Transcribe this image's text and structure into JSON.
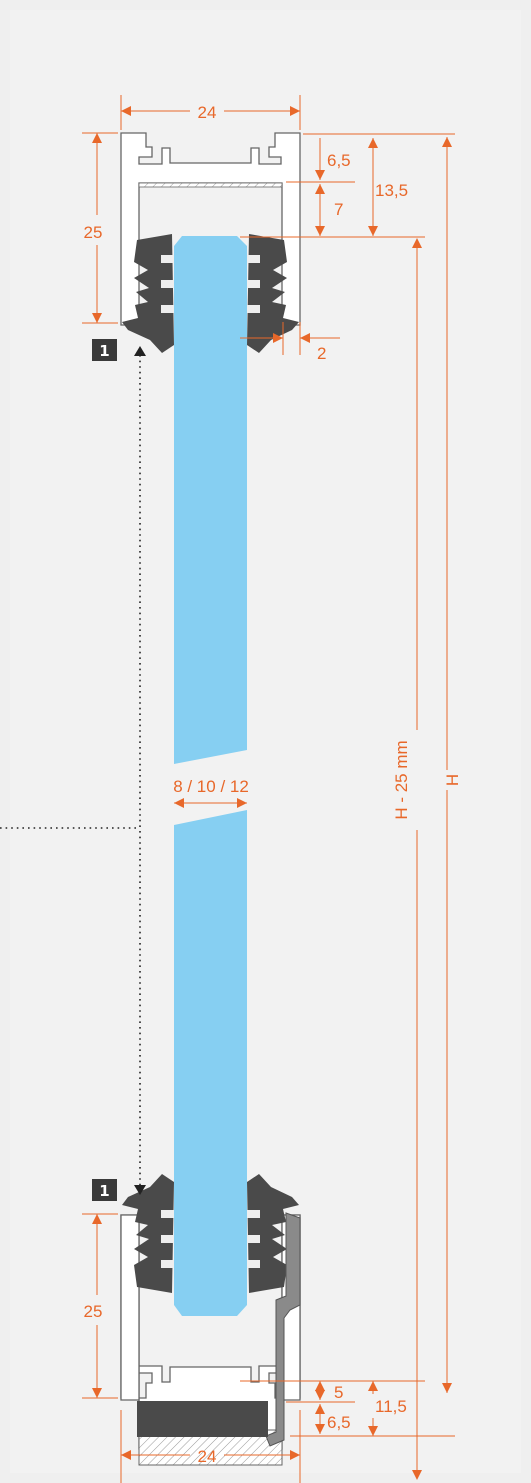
{
  "dimensions": {
    "top_width": "24",
    "top_height": "25",
    "top_d1": "6,5",
    "top_d2": "7",
    "top_d3": "13,5",
    "seal_gap": "2",
    "glass_thickness": "8 / 10 / 12",
    "glass_height": "H - 25 mm",
    "total_height": "H",
    "bottom_height": "25",
    "bottom_d1": "5",
    "bottom_d2": "11,5",
    "bottom_d3": "6,5",
    "bottom_width": "24"
  },
  "callouts": {
    "top_marker": "1",
    "bottom_marker": "1"
  },
  "colors": {
    "dimension": "#e8682a",
    "glass": "#86cff2",
    "seal": "#4a4a4a",
    "background": "#efefef"
  }
}
